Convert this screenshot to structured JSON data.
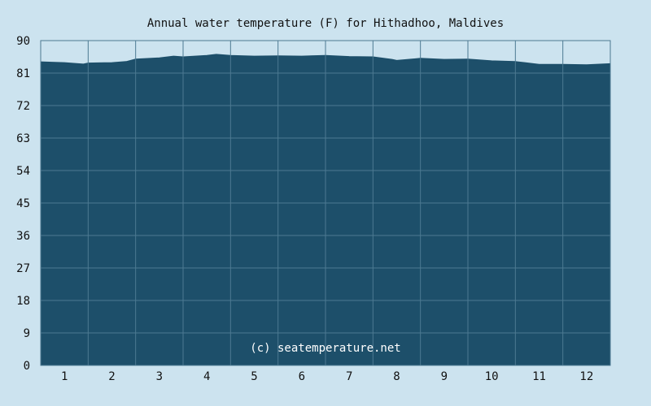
{
  "chart_data": {
    "type": "area",
    "title": "Annual water temperature (F) for Hithadhoo, Maldives",
    "xlabel": "",
    "ylabel": "",
    "categories": [
      "1",
      "2",
      "3",
      "4",
      "5",
      "6",
      "7",
      "8",
      "9",
      "10",
      "11",
      "12"
    ],
    "xlim": [
      0.5,
      12.5
    ],
    "ylim": [
      0,
      90
    ],
    "yticks": [
      0,
      9,
      18,
      27,
      36,
      45,
      54,
      63,
      72,
      81,
      90
    ],
    "grid": true,
    "legend": "none",
    "series": [
      {
        "x": [
          0.5,
          0.8,
          1.0,
          1.4,
          1.5,
          2.0,
          2.3,
          2.5,
          3.0,
          3.3,
          3.5,
          4.0,
          4.2,
          4.5,
          5.0,
          5.5,
          6.0,
          6.5,
          7.0,
          7.5,
          7.9,
          8.0,
          8.5,
          9.0,
          9.5,
          10.0,
          10.5,
          10.7,
          11.0,
          11.5,
          12.0,
          12.5
        ],
        "values": [
          84.1,
          84.0,
          83.9,
          83.5,
          83.8,
          83.9,
          84.2,
          84.9,
          85.2,
          85.7,
          85.5,
          85.9,
          86.2,
          85.9,
          85.7,
          85.8,
          85.7,
          85.9,
          85.6,
          85.5,
          84.8,
          84.5,
          85.1,
          84.8,
          84.9,
          84.4,
          84.2,
          83.9,
          83.4,
          83.4,
          83.3,
          83.6
        ]
      }
    ],
    "watermark": "(c) seatemperature.net",
    "colors": {
      "background": "#cce3ef",
      "area_fill": "#1d4f6a",
      "grid": "#4d7a92",
      "watermark": "#ffffff"
    }
  }
}
